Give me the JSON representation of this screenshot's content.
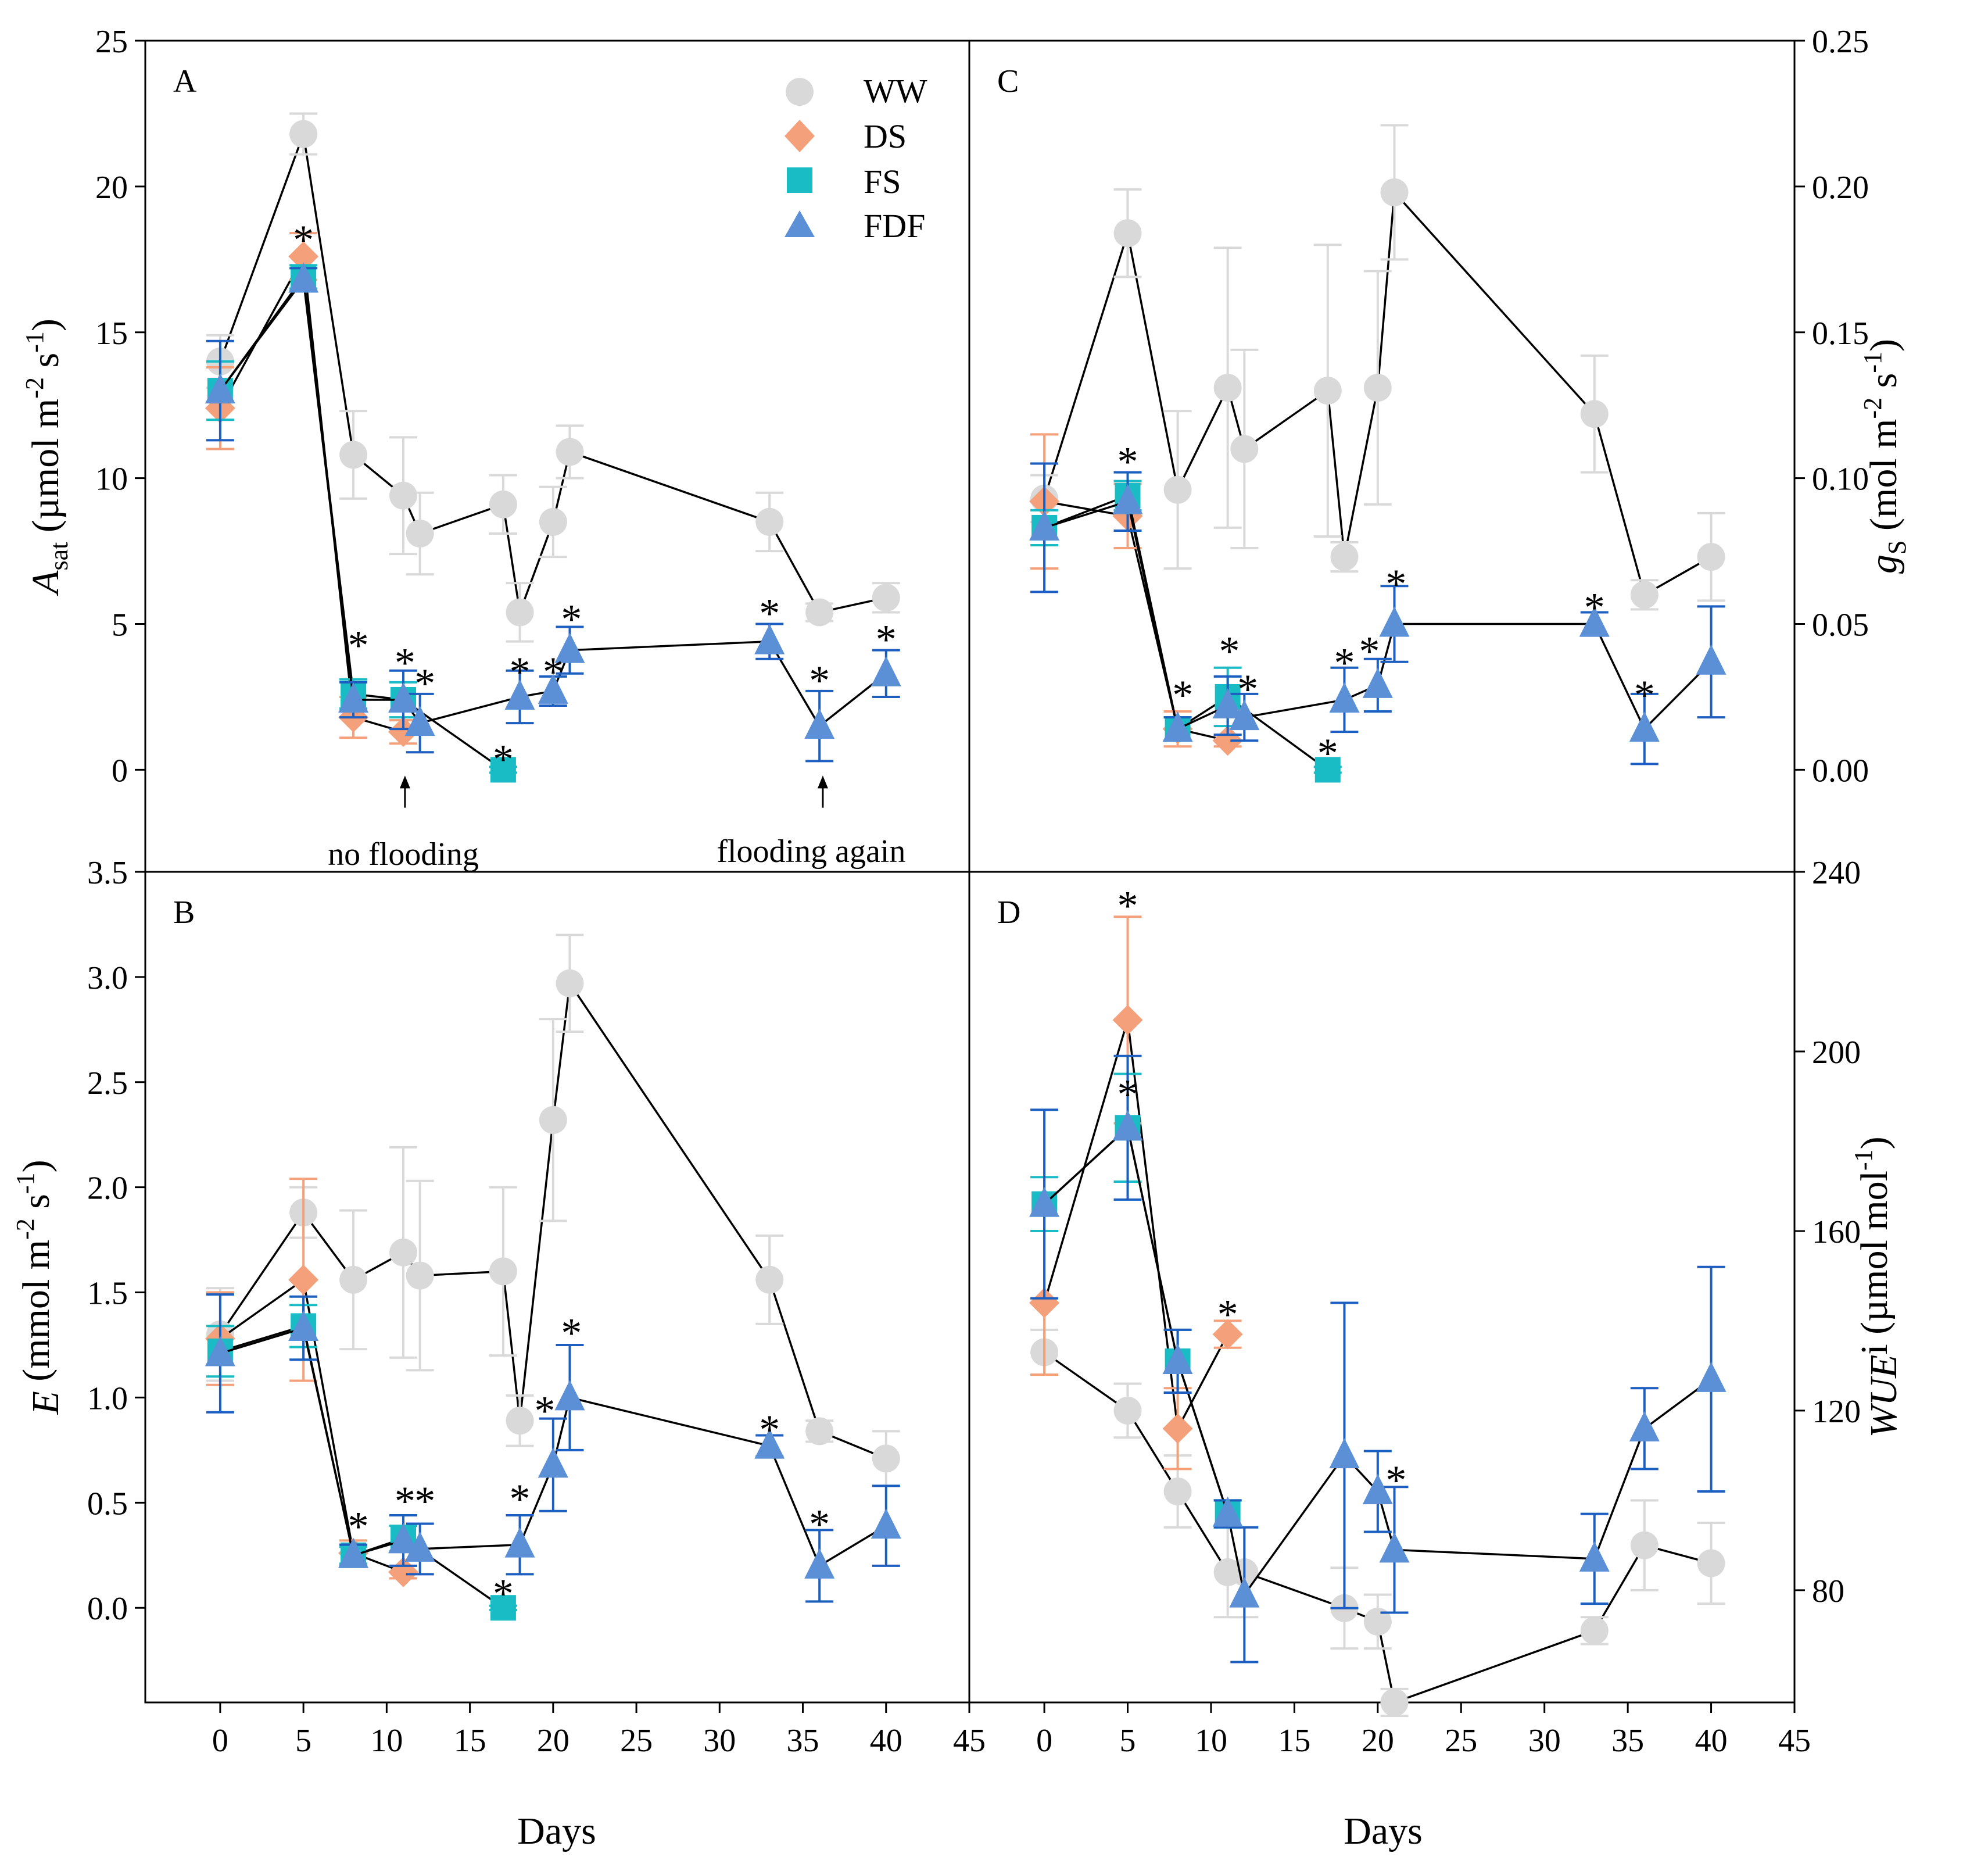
{
  "figure": {
    "x_title": "Days",
    "legend": {
      "WW": "WW",
      "DS": "DS",
      "FS": "FS",
      "FDF": "FDF"
    },
    "annotations": {
      "no_flooding": "no flooding",
      "flooding_again": "flooding again"
    },
    "star": "*"
  },
  "colors": {
    "WW": "#d9d9d9",
    "DS": "#f4a07a",
    "FS": "#19bcc4",
    "FDF": "#5b8fd6",
    "FDF_err": "#1c5fc0",
    "line": "#000000"
  },
  "chart_data": [
    {
      "id": "A",
      "panel_label": "A",
      "type": "scatter",
      "ylabel_main": "A",
      "ylabel_sub": "sat",
      "ylabel_rest": " (µmol m",
      "ylabel_exp1": "-2",
      "ylabel_mid": " s",
      "ylabel_exp2": "-1",
      "ylabel_end": ")",
      "ylabel_side": "left",
      "ylim": [
        -3.5,
        25
      ],
      "yticks": [
        0,
        5,
        10,
        15,
        20,
        25
      ],
      "ytick_labels": [
        "0",
        "5",
        "10",
        "15",
        "20",
        "25"
      ],
      "xlim": [
        -4.5,
        45
      ],
      "xticks": [
        0,
        5,
        10,
        15,
        20,
        25,
        30,
        35,
        40,
        45
      ],
      "xtick_labels": [
        "0",
        "5",
        "10",
        "15",
        "20",
        "25",
        "30",
        "35",
        "40",
        "45"
      ],
      "show_xticks": false,
      "series": [
        {
          "name": "WW",
          "marker": "circle",
          "x": [
            0,
            5,
            8,
            11,
            12,
            17,
            18,
            20,
            21,
            33,
            36,
            40
          ],
          "y": [
            14.0,
            21.8,
            10.8,
            9.4,
            8.1,
            9.1,
            5.4,
            8.5,
            10.9,
            8.5,
            5.4,
            5.9
          ],
          "err": [
            0.9,
            0.7,
            1.5,
            2.0,
            1.4,
            1.0,
            1.0,
            1.2,
            0.9,
            1.0,
            0.3,
            0.5
          ]
        },
        {
          "name": "DS",
          "marker": "diamond",
          "x": [
            0,
            5,
            8,
            11
          ],
          "y": [
            12.4,
            17.6,
            1.8,
            1.3
          ],
          "err": [
            1.4,
            0.8,
            0.7,
            0.4
          ]
        },
        {
          "name": "FS",
          "marker": "square",
          "x": [
            0,
            5,
            8,
            11,
            17
          ],
          "y": [
            13.0,
            16.9,
            2.6,
            2.4,
            0.0
          ],
          "err": [
            1.0,
            0.4,
            0.5,
            0.6,
            0.1
          ]
        },
        {
          "name": "FDF",
          "marker": "triangle",
          "x": [
            0,
            5,
            8,
            11,
            12,
            18,
            20,
            21,
            33,
            36,
            40
          ],
          "y": [
            13.0,
            16.8,
            2.4,
            2.4,
            1.6,
            2.5,
            2.7,
            4.1,
            4.4,
            1.5,
            3.3
          ],
          "err": [
            1.7,
            0.4,
            0.6,
            1.0,
            1.0,
            0.9,
            0.5,
            0.8,
            0.6,
            1.2,
            0.8
          ]
        }
      ],
      "stars": [
        {
          "x": 5,
          "y": 18.4
        },
        {
          "x": 8.3,
          "y": 4.5
        },
        {
          "x": 11.1,
          "y": 3.9
        },
        {
          "x": 12.3,
          "y": 3.2
        },
        {
          "x": 17,
          "y": 0.6
        },
        {
          "x": 18,
          "y": 3.6
        },
        {
          "x": 20,
          "y": 3.6
        },
        {
          "x": 21.1,
          "y": 5.4
        },
        {
          "x": 33,
          "y": 5.6
        },
        {
          "x": 36,
          "y": 3.3
        },
        {
          "x": 40,
          "y": 4.7
        }
      ],
      "arrows": [
        {
          "x": 11.1,
          "y_from": -1.3,
          "y_to": -0.2,
          "label_key": "no_flooding",
          "label_x": 11,
          "label_y": -2.9
        },
        {
          "x": 36.2,
          "y_from": -1.3,
          "y_to": -0.2,
          "label_key": "flooding_again",
          "label_x": 35.5,
          "label_y": -2.8
        }
      ]
    },
    {
      "id": "C",
      "panel_label": "C",
      "type": "scatter",
      "ylabel_main": "g",
      "ylabel_sub": "S",
      "ylabel_rest": " (mol m",
      "ylabel_exp1": "-2",
      "ylabel_mid": " s",
      "ylabel_exp2": "-1",
      "ylabel_end": ")",
      "ylabel_side": "right",
      "ylim": [
        -0.035,
        0.25
      ],
      "yticks": [
        0,
        0.05,
        0.1,
        0.15,
        0.2,
        0.25
      ],
      "ytick_labels": [
        "0.00",
        "0.05",
        "0.10",
        "0.15",
        "0.20",
        "0.25"
      ],
      "xlim": [
        -4.5,
        45
      ],
      "xticks": [
        0,
        5,
        10,
        15,
        20,
        25,
        30,
        35,
        40,
        45
      ],
      "xtick_labels": [
        "0",
        "5",
        "10",
        "15",
        "20",
        "25",
        "30",
        "35",
        "40",
        "45"
      ],
      "show_xticks": false,
      "series": [
        {
          "name": "WW",
          "marker": "circle",
          "x": [
            0,
            5,
            8,
            11,
            12,
            17,
            18,
            20,
            21,
            33,
            36,
            40
          ],
          "y": [
            0.093,
            0.184,
            0.096,
            0.131,
            0.11,
            0.13,
            0.073,
            0.131,
            0.198,
            0.122,
            0.06,
            0.073
          ],
          "err": [
            0.008,
            0.015,
            0.027,
            0.048,
            0.034,
            0.05,
            0.005,
            0.04,
            0.023,
            0.02,
            0.005,
            0.015
          ]
        },
        {
          "name": "DS",
          "marker": "diamond",
          "x": [
            0,
            5,
            8,
            11
          ],
          "y": [
            0.092,
            0.087,
            0.014,
            0.01
          ],
          "err": [
            0.023,
            0.011,
            0.006,
            0.002
          ]
        },
        {
          "name": "FS",
          "marker": "square",
          "x": [
            0,
            5,
            8,
            11,
            17
          ],
          "y": [
            0.083,
            0.094,
            0.014,
            0.025,
            0.0
          ],
          "err": [
            0.006,
            0.005,
            0.004,
            0.01,
            0.001
          ]
        },
        {
          "name": "FDF",
          "marker": "triangle",
          "x": [
            0,
            5,
            8,
            11,
            12,
            18,
            20,
            21,
            33,
            36,
            40
          ],
          "y": [
            0.083,
            0.092,
            0.014,
            0.022,
            0.018,
            0.024,
            0.029,
            0.05,
            0.05,
            0.014,
            0.037
          ],
          "err": [
            0.022,
            0.01,
            0.004,
            0.01,
            0.008,
            0.011,
            0.009,
            0.013,
            0.004,
            0.012,
            0.019
          ]
        }
      ],
      "stars": [
        {
          "x": 5,
          "y": 0.108
        },
        {
          "x": 8.3,
          "y": 0.028
        },
        {
          "x": 11.1,
          "y": 0.043
        },
        {
          "x": 12.2,
          "y": 0.03
        },
        {
          "x": 17,
          "y": 0.008
        },
        {
          "x": 18,
          "y": 0.039
        },
        {
          "x": 19.5,
          "y": 0.043
        },
        {
          "x": 21.1,
          "y": 0.066
        },
        {
          "x": 33,
          "y": 0.058
        },
        {
          "x": 36,
          "y": 0.028
        }
      ],
      "arrows": []
    },
    {
      "id": "B",
      "panel_label": "B",
      "type": "scatter",
      "ylabel_main": "E",
      "ylabel_sub": "",
      "ylabel_rest": " (mmol m",
      "ylabel_exp1": "-2",
      "ylabel_mid": " s",
      "ylabel_exp2": "-1",
      "ylabel_end": ")",
      "ylabel_side": "left",
      "ylim": [
        -0.45,
        3.5
      ],
      "yticks": [
        0,
        0.5,
        1.0,
        1.5,
        2.0,
        2.5,
        3.0,
        3.5
      ],
      "ytick_labels": [
        "0.0",
        "0.5",
        "1.0",
        "1.5",
        "2.0",
        "2.5",
        "3.0",
        "3.5"
      ],
      "xlim": [
        -4.5,
        45
      ],
      "xticks": [
        0,
        5,
        10,
        15,
        20,
        25,
        30,
        35,
        40,
        45
      ],
      "xtick_labels": [
        "0",
        "5",
        "10",
        "15",
        "20",
        "25",
        "30",
        "35",
        "40",
        "45"
      ],
      "show_xticks": true,
      "series": [
        {
          "name": "WW",
          "marker": "circle",
          "x": [
            0,
            5,
            8,
            11,
            12,
            17,
            18,
            20,
            21,
            33,
            36,
            40
          ],
          "y": [
            1.3,
            1.88,
            1.56,
            1.69,
            1.58,
            1.6,
            0.89,
            2.32,
            2.97,
            1.56,
            0.84,
            0.71
          ],
          "err": [
            0.22,
            0.12,
            0.33,
            0.5,
            0.45,
            0.4,
            0.12,
            0.48,
            0.23,
            0.21,
            0.05,
            0.13
          ]
        },
        {
          "name": "DS",
          "marker": "diamond",
          "x": [
            0,
            5,
            8,
            11
          ],
          "y": [
            1.28,
            1.56,
            0.26,
            0.17
          ],
          "err": [
            0.22,
            0.48,
            0.06,
            0.03
          ]
        },
        {
          "name": "FS",
          "marker": "square",
          "x": [
            0,
            5,
            8,
            11,
            17
          ],
          "y": [
            1.22,
            1.34,
            0.25,
            0.33,
            0.0
          ],
          "err": [
            0.12,
            0.1,
            0.04,
            0.06,
            0.01
          ]
        },
        {
          "name": "FDF",
          "marker": "triangle",
          "x": [
            0,
            5,
            8,
            11,
            12,
            18,
            20,
            21,
            33,
            36,
            40
          ],
          "y": [
            1.21,
            1.33,
            0.25,
            0.32,
            0.28,
            0.3,
            0.68,
            1.0,
            0.77,
            0.2,
            0.39
          ],
          "err": [
            0.28,
            0.15,
            0.05,
            0.12,
            0.12,
            0.14,
            0.22,
            0.25,
            0.05,
            0.17,
            0.19
          ]
        }
      ],
      "stars": [
        {
          "x": 8.3,
          "y": 0.42
        },
        {
          "x": 11.1,
          "y": 0.54
        },
        {
          "x": 12.3,
          "y": 0.54
        },
        {
          "x": 17,
          "y": 0.1
        },
        {
          "x": 18,
          "y": 0.55
        },
        {
          "x": 19.5,
          "y": 0.97
        },
        {
          "x": 21.1,
          "y": 1.34
        },
        {
          "x": 33,
          "y": 0.88
        },
        {
          "x": 36,
          "y": 0.43
        }
      ],
      "arrows": []
    },
    {
      "id": "D",
      "panel_label": "D",
      "type": "scatter",
      "ylabel_main": "WUE",
      "ylabel_sub": "",
      "ylabel_rest": "i (µmol mol",
      "ylabel_exp1": "-1",
      "ylabel_mid": "",
      "ylabel_exp2": "",
      "ylabel_end": ")",
      "ylabel_side": "right",
      "ylim": [
        55,
        240
      ],
      "yticks": [
        80,
        120,
        160,
        200,
        240
      ],
      "ytick_labels": [
        "80",
        "120",
        "160",
        "200",
        "240"
      ],
      "xlim": [
        -4.5,
        45
      ],
      "xticks": [
        0,
        5,
        10,
        15,
        20,
        25,
        30,
        35,
        40,
        45
      ],
      "xtick_labels": [
        "0",
        "5",
        "10",
        "15",
        "20",
        "25",
        "30",
        "35",
        "40",
        "45"
      ],
      "show_xticks": true,
      "series": [
        {
          "name": "WW",
          "marker": "circle",
          "x": [
            0,
            5,
            8,
            11,
            12,
            18,
            20,
            21,
            33,
            36,
            40
          ],
          "y": [
            133,
            120,
            102,
            84,
            84,
            76,
            73,
            55,
            71,
            90,
            86
          ],
          "err": [
            5,
            6,
            8,
            10,
            10,
            9,
            6,
            3,
            3,
            10,
            9
          ]
        },
        {
          "name": "DS",
          "marker": "diamond",
          "x": [
            0,
            5,
            8,
            11
          ],
          "y": [
            144,
            207,
            116,
            137
          ],
          "err": [
            16,
            23,
            9,
            3
          ]
        },
        {
          "name": "FS",
          "marker": "square",
          "x": [
            0,
            5,
            8,
            11
          ],
          "y": [
            166,
            183,
            131,
            97
          ],
          "err": [
            6,
            12,
            7,
            3
          ]
        },
        {
          "name": "FDF",
          "marker": "triangle",
          "x": [
            0,
            5,
            8,
            11,
            12,
            18,
            20,
            21,
            33,
            36,
            40
          ],
          "y": [
            166,
            183,
            131,
            97,
            79,
            110,
            102,
            89,
            87,
            116,
            127
          ],
          "err": [
            21,
            16,
            7,
            3,
            15,
            34,
            9,
            14,
            10,
            9,
            25
          ]
        }
      ],
      "stars": [
        {
          "x": 5,
          "y": 234
        },
        {
          "x": 5,
          "y": 192
        },
        {
          "x": 11,
          "y": 143
        },
        {
          "x": 21.1,
          "y": 106
        }
      ],
      "arrows": []
    }
  ]
}
